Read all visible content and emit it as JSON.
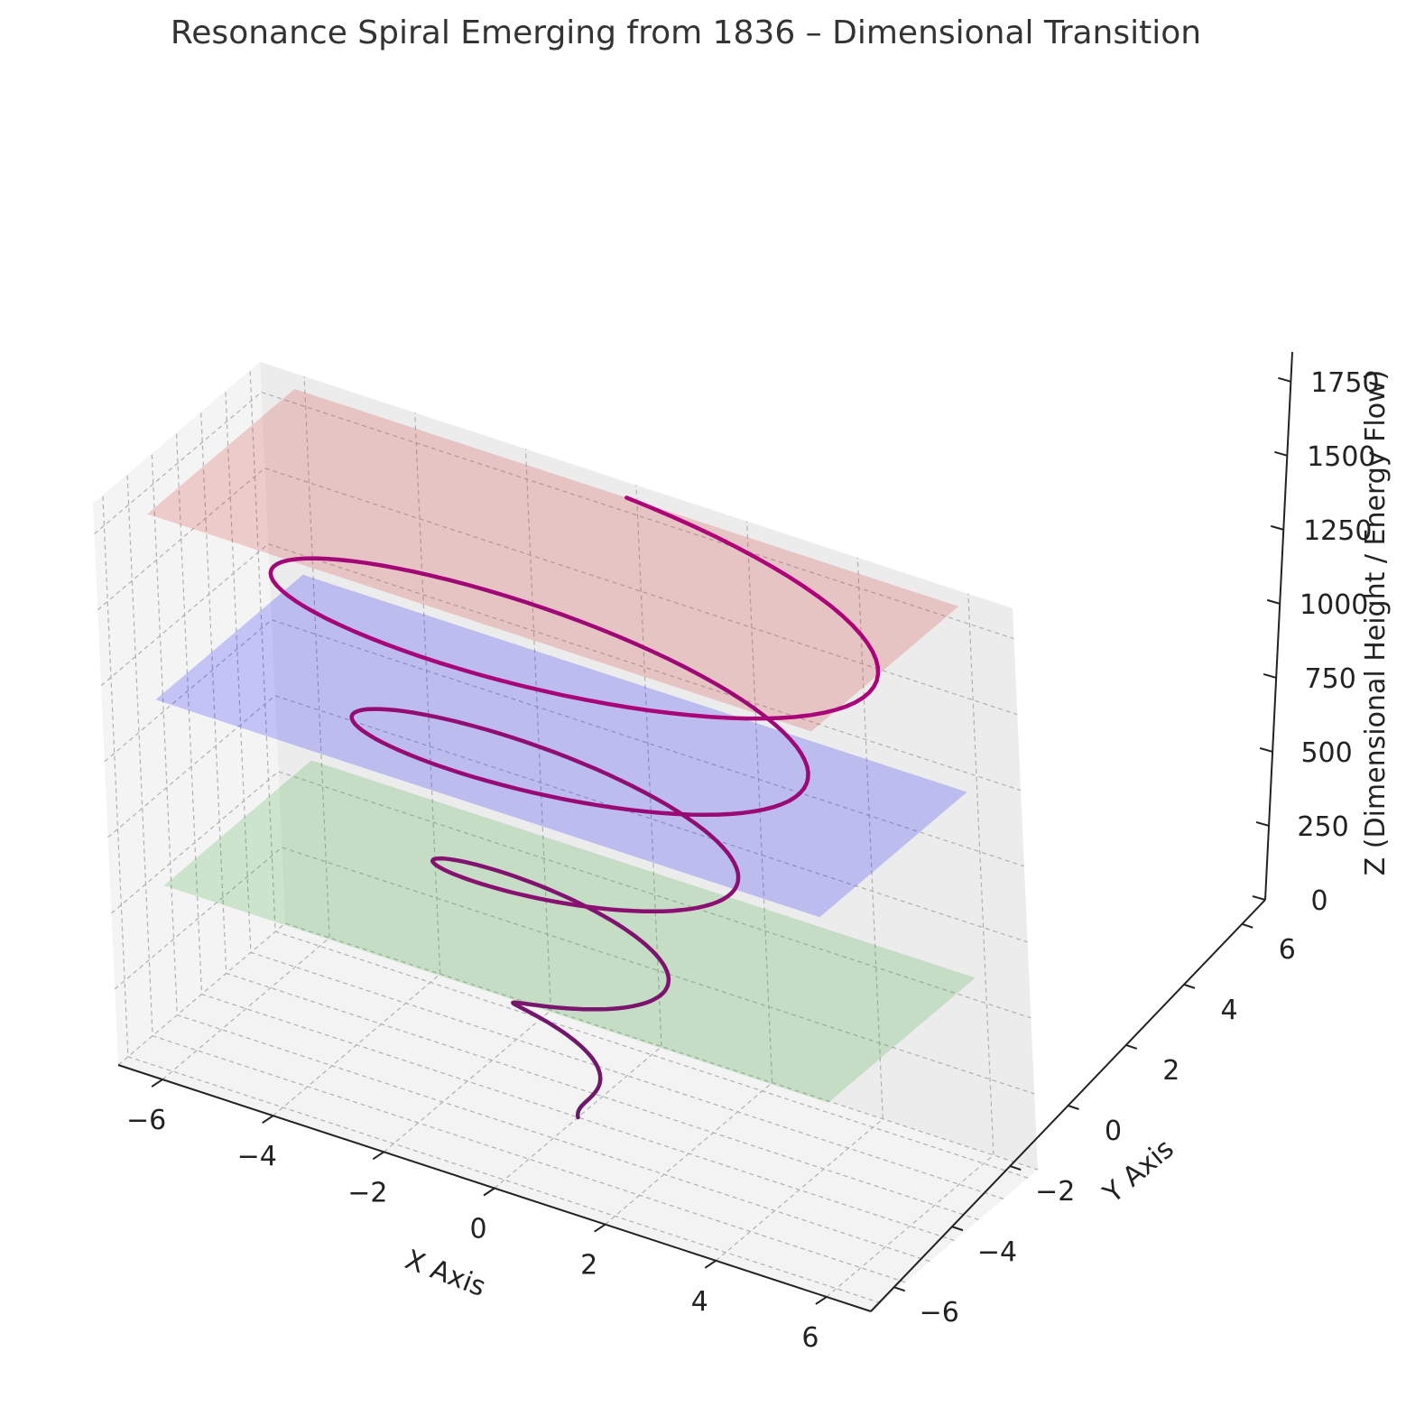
{
  "chart_data": {
    "type": "line",
    "projection": "3d",
    "title": "Resonance Spiral Emerging from 1836 – Dimensional Transition",
    "xlabel": "X Axis",
    "ylabel": "Y Axis",
    "zlabel": "Z (Dimensional Height / Energy Flow)",
    "xlim": [
      -6.8,
      6.8
    ],
    "ylim": [
      -6.8,
      6.8
    ],
    "zlim": [
      0,
      1850
    ],
    "x_ticks": [
      "−6",
      "−4",
      "−2",
      "0",
      "2",
      "4",
      "6"
    ],
    "y_ticks": [
      "−6",
      "−4",
      "−2",
      "0",
      "2",
      "4",
      "6"
    ],
    "z_ticks": [
      "0",
      "250",
      "500",
      "750",
      "1000",
      "1250",
      "1500",
      "1750"
    ],
    "grid": true,
    "planes": [
      {
        "z": 612,
        "color": "#2ca02c",
        "opacity": 0.2
      },
      {
        "z": 1224,
        "color": "#0000ff",
        "opacity": 0.2
      },
      {
        "z": 1836,
        "color": "#d62728",
        "opacity": 0.2
      }
    ],
    "series": [
      {
        "kind": "spiral",
        "color_start": "#6a1b6a",
        "color_end": "#b0007a",
        "radius_start": 0.0,
        "radius_end": 6.0,
        "z_start": 0,
        "z_end": 1836,
        "turns": 4.5
      }
    ]
  }
}
